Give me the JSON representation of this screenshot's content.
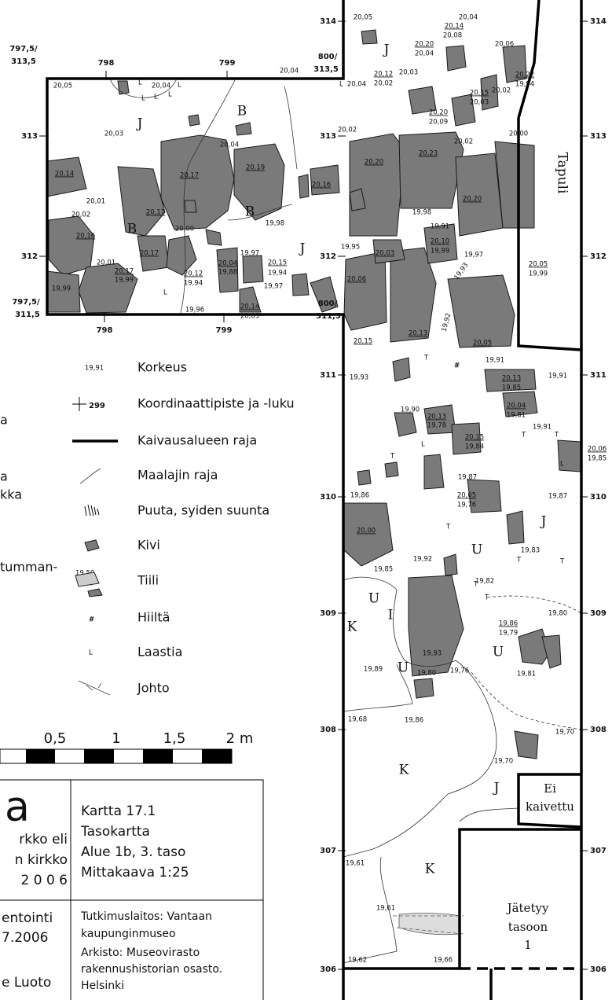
{
  "grid": {
    "rows": [
      "314",
      "313",
      "312",
      "311",
      "310",
      "309",
      "308",
      "307",
      "306"
    ],
    "left_rows": [
      "313",
      "312"
    ],
    "corners": [
      "797,5/",
      "313,5",
      "800/",
      "313,5",
      "797,5/",
      "311,5",
      "800/",
      "311,5"
    ],
    "columns": [
      "798",
      "799",
      "798",
      "799"
    ]
  },
  "area_labels": [
    "J",
    "B",
    "B",
    "B",
    "J",
    "J",
    "J",
    "K",
    "I",
    "U",
    "U",
    "U",
    "U",
    "K",
    "J",
    "K"
  ],
  "zones": {
    "tapuli": "Tapuli",
    "not_dug": [
      "Ei",
      "kaivettu"
    ],
    "left_at_level": [
      "Jätetyy",
      "tasoon",
      "1"
    ]
  },
  "symbols": {
    "mortar": "L",
    "tile": "T",
    "charcoal": "#"
  },
  "elevations": [
    "20,05",
    "20,04",
    "20,14",
    "20,08",
    "20,20",
    "20,04",
    "20,06",
    "20,04",
    "20,12",
    "20,02",
    "20,03",
    "20,22",
    "19,94",
    "20,15",
    "20,03",
    "20,02",
    "20,04",
    "20,05",
    "20,04",
    "20,20",
    "20,09",
    "20,03",
    "20,04",
    "20,02",
    "20,02",
    "20,00",
    "20,14",
    "20,17",
    "20,19",
    "20,20",
    "20,23",
    "20,16",
    "20,20",
    "20,01",
    "20,02",
    "20,17",
    "19,98",
    "19,98",
    "19,91",
    "20,16",
    "20,00",
    "20,10",
    "19,99",
    "20,01",
    "20,17",
    "19,97",
    "20,15",
    "19,94",
    "20,04",
    "19,88",
    "19,95",
    "20,03",
    "19,97",
    "20,05",
    "19,99",
    "20,17",
    "19,99",
    "20,12",
    "19,94",
    "19,93",
    "19,99",
    "20,06",
    "19,96",
    "19,97",
    "20,14",
    "20,03",
    "19,92",
    "20,15",
    "20,13",
    "20,05",
    "19,91",
    "19,93",
    "19,91",
    "20,13",
    "19,85",
    "19,90",
    "20,13",
    "19,78",
    "20,04",
    "19,81",
    "19,91",
    "20,15",
    "19,84",
    "20,06",
    "19,85",
    "19,87",
    "19,86",
    "20,05",
    "19,76",
    "19,87",
    "20,00",
    "19,85",
    "19,92",
    "19,82",
    "19,83",
    "19,80",
    "19,86",
    "19,79",
    "19,93",
    "19,80",
    "19,76",
    "19,89",
    "19,81",
    "19,68",
    "19,86",
    "19,70",
    "19,70",
    "19,61",
    "19,61",
    "19,62",
    "19,66"
  ],
  "legend": {
    "items": [
      "Korkeus",
      "Koordinaattipiste ja -luku",
      "Kaivausalueen raja",
      "Maalajin raja",
      "Puuta, syiden suunta",
      "Kivi",
      "Tiili",
      "Hiiltä",
      "Laastia",
      "Johto"
    ],
    "sample_elevation": "19,91",
    "sample_coordinate": "299",
    "sample_tile": "19,50",
    "cut_texts": [
      "a",
      "a",
      "kka",
      "tumman-"
    ]
  },
  "scale": {
    "labels": [
      "0,5",
      "1",
      "1,5",
      "2 m"
    ]
  },
  "title_block": {
    "left": [
      "a",
      "rkko eli",
      "n kirkko",
      "2 0 0 6"
    ],
    "right": [
      "Kartta 17.1",
      "Tasokartta",
      "Alue 1b, 3. taso",
      "Mittakaava 1:25"
    ],
    "bottom_left": [
      "entointi",
      "7.2006",
      "e Luoto"
    ],
    "bottom_right": [
      "Tutkimuslaitos: Vantaan",
      "kaupunginmuseo",
      "Arkisto: Museovirasto",
      "rakennushistorian osasto.",
      "Helsinki"
    ]
  }
}
